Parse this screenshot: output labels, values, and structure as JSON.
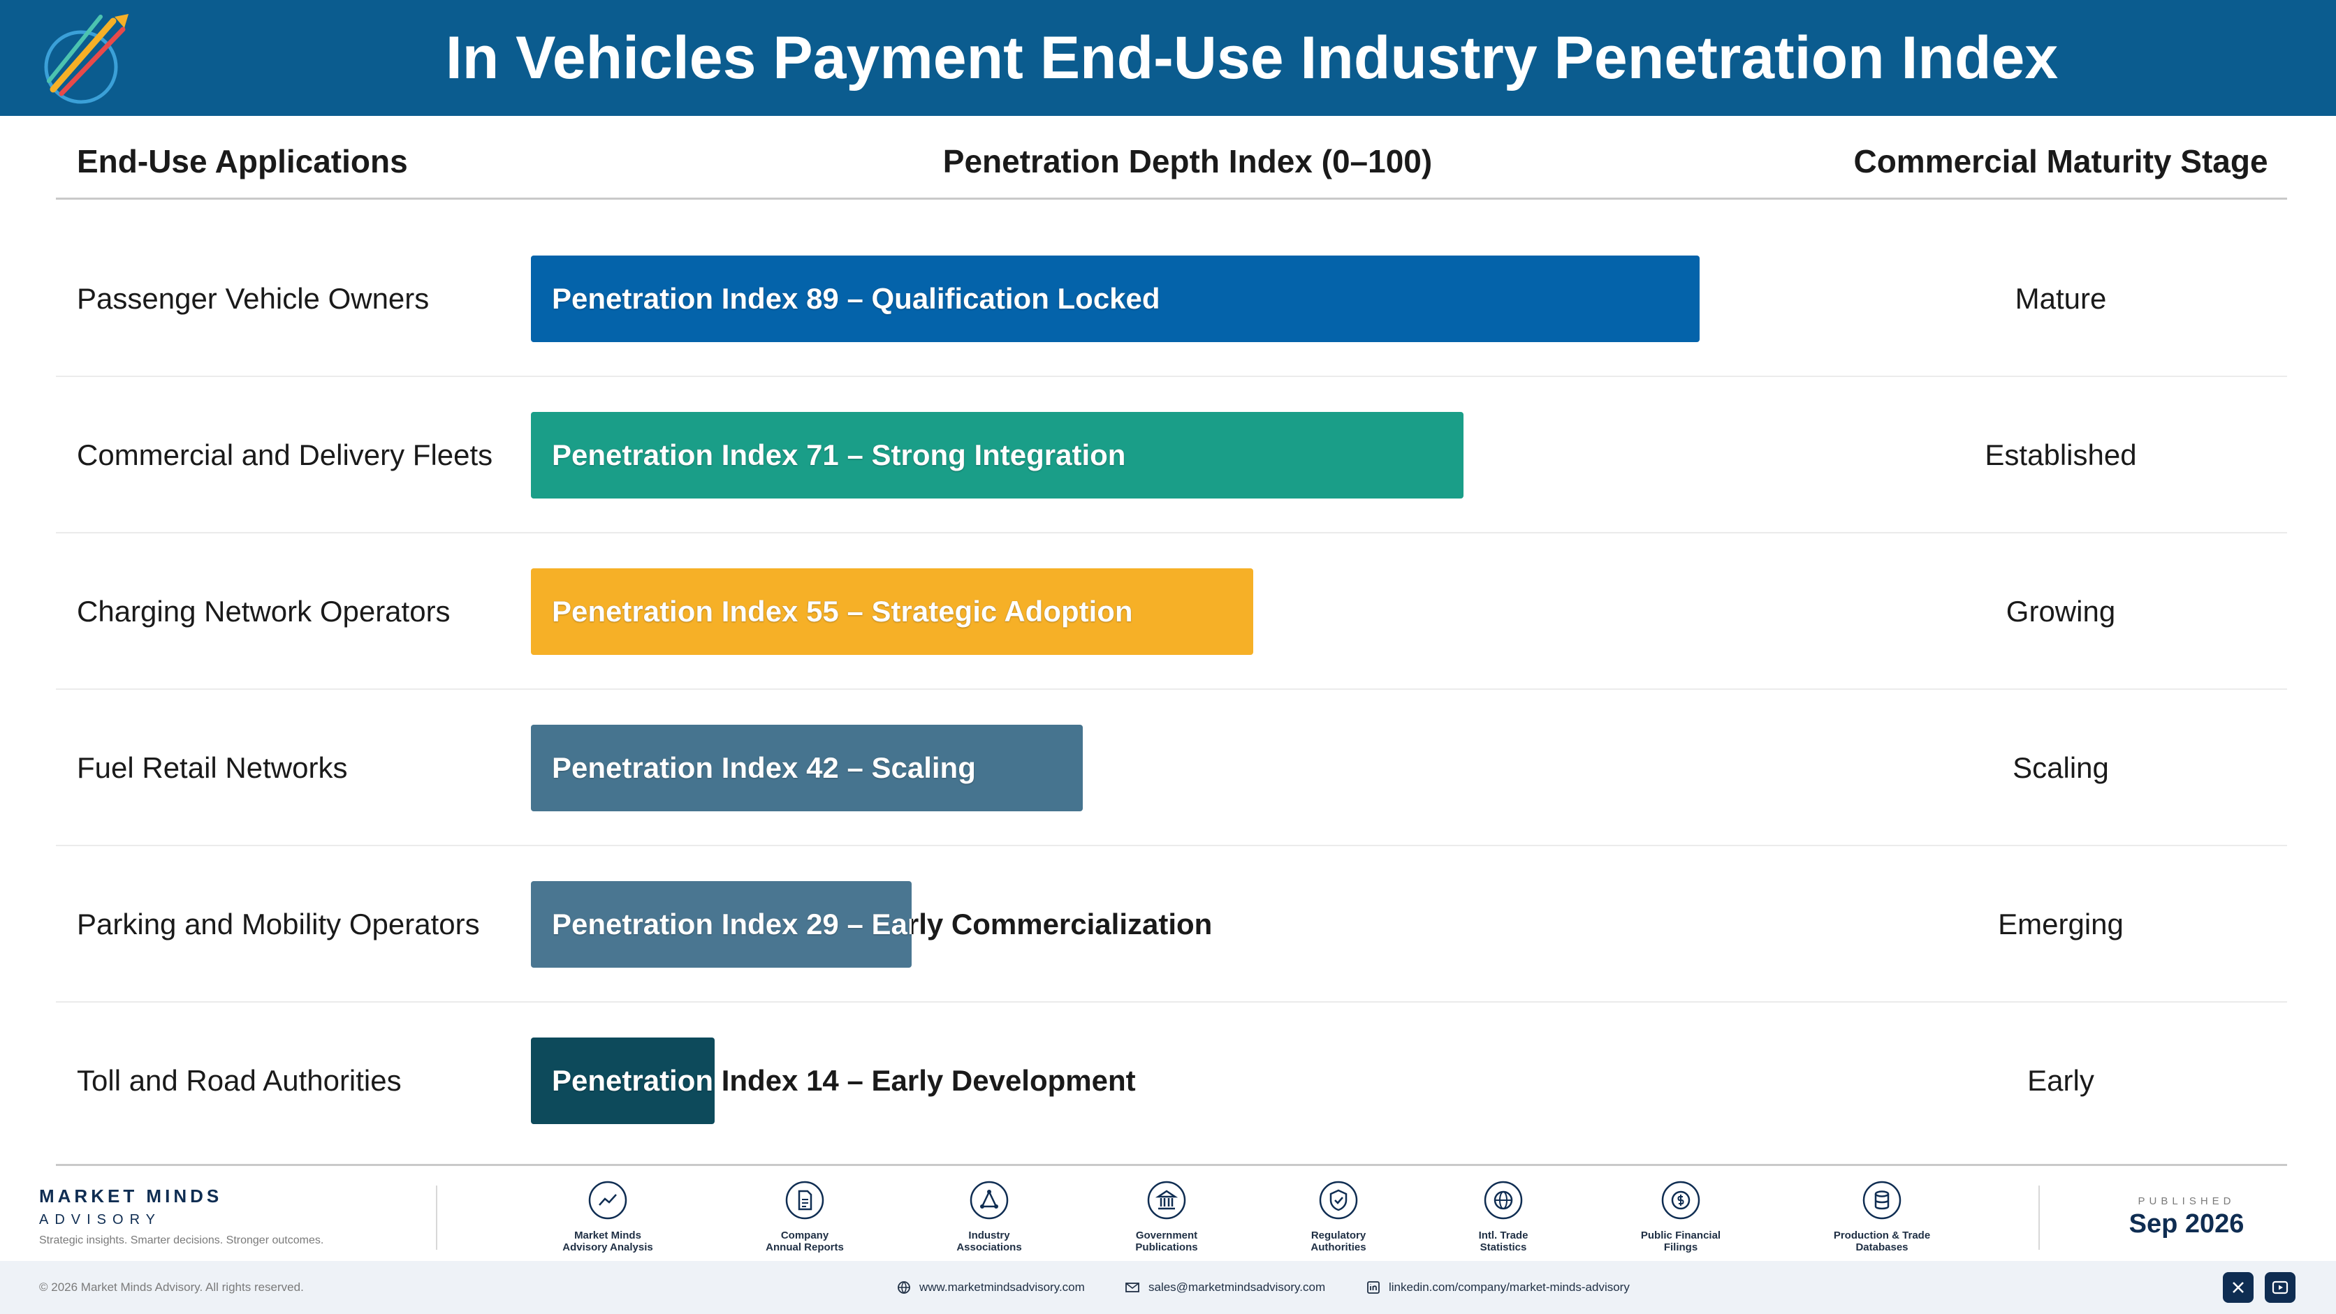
{
  "header": {
    "title": "In Vehicles Payment End-Use Industry Penetration Index"
  },
  "columns": {
    "apps": "End-Use Applications",
    "index": "Penetration Depth Index (0–100)",
    "stage": "Commercial Maturity Stage"
  },
  "colors": {
    "header_bg": "#0b5c8f",
    "navy": "#0f2d52",
    "bars": [
      "#0463aa",
      "#1a9e88",
      "#f6b027",
      "#46748f",
      "#4a7691",
      "#0d4a5b"
    ]
  },
  "chart_data": {
    "type": "bar",
    "orientation": "horizontal",
    "xlim": [
      0,
      100
    ],
    "categories": [
      "Passenger Vehicle Owners",
      "Commercial and Delivery Fleets",
      "Charging Network Operators",
      "Fuel Retail Networks",
      "Parking and Mobility Operators",
      "Toll and Road Authorities"
    ],
    "values": [
      89,
      71,
      55,
      42,
      29,
      14
    ],
    "bar_labels": [
      "Penetration Index 89 – Qualification Locked",
      "Penetration Index 71 – Strong Integration",
      "Penetration Index 55 – Strategic Adoption",
      "Penetration Index 42 – Scaling",
      "Penetration Index 29 – Early Commercialization",
      "Penetration Index 14 – Early Development"
    ],
    "stages": [
      "Mature",
      "Established",
      "Growing",
      "Scaling",
      "Emerging",
      "Early"
    ]
  },
  "footer": {
    "brand_name": "MARKET MINDS",
    "brand_sub": "ADVISORY",
    "brand_tagline": "Strategic insights. Smarter decisions. Stronger outcomes.",
    "sources": [
      {
        "icon": "chart-line-icon",
        "line1": "Market Minds",
        "line2": "Advisory Analysis"
      },
      {
        "icon": "document-icon",
        "line1": "Company",
        "line2": "Annual Reports"
      },
      {
        "icon": "network-icon",
        "line1": "Industry",
        "line2": "Associations"
      },
      {
        "icon": "government-building-icon",
        "line1": "Government",
        "line2": "Publications"
      },
      {
        "icon": "shield-check-icon",
        "line1": "Regulatory",
        "line2": "Authorities"
      },
      {
        "icon": "globe-icon",
        "line1": "Intl. Trade",
        "line2": "Statistics"
      },
      {
        "icon": "coin-icon",
        "line1": "Public Financial",
        "line2": "Filings"
      },
      {
        "icon": "database-icon",
        "line1": "Production & Trade",
        "line2": "Databases"
      }
    ],
    "published_label": "PUBLISHED",
    "published_date": "Sep 2026",
    "copyright": "© 2026 Market Minds Advisory. All rights reserved.",
    "website": "www.marketmindsadvisory.com",
    "email": "sales@marketmindsadvisory.com",
    "linkedin": "linkedin.com/company/market-minds-advisory"
  }
}
